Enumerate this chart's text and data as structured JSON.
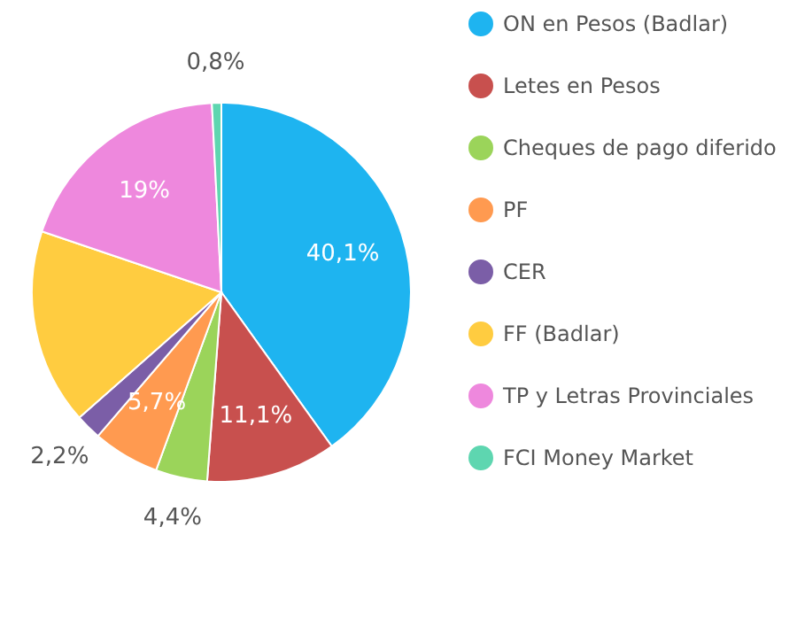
{
  "chart_data": {
    "type": "pie",
    "categories": [
      "ON en Pesos (Badlar)",
      "Letes en Pesos",
      "Cheques de pago diferido",
      "PF",
      "CER",
      "FF (Badlar)",
      "TP y Letras Provinciales",
      "FCI Money Market"
    ],
    "values": [
      40.1,
      11.1,
      4.4,
      5.7,
      2.2,
      16.7,
      19,
      0.8
    ],
    "value_labels": [
      "40,1%",
      "11,1%",
      "4,4%",
      "5,7%",
      "2,2%",
      null,
      "19%",
      "0,8%"
    ],
    "colors": [
      "#1eb4f0",
      "#c8504e",
      "#9bd45a",
      "#ff9a50",
      "#7b5ea7",
      "#ffcc40",
      "#ee88dd",
      "#5ed6b0"
    ],
    "legend": "right"
  }
}
